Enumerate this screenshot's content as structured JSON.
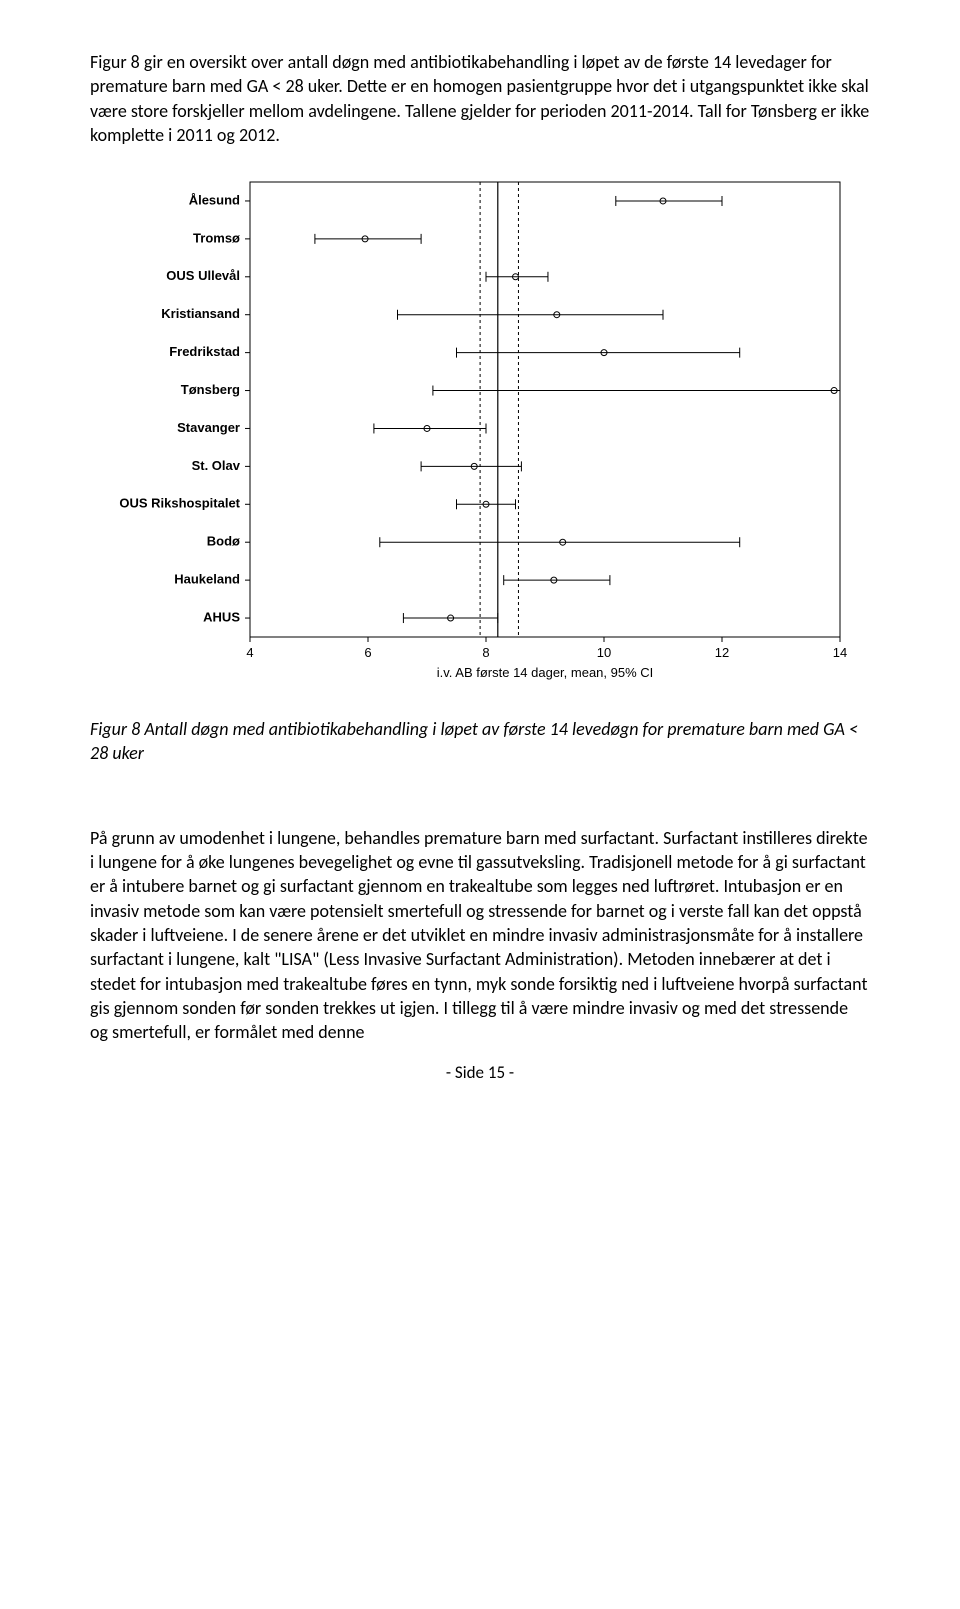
{
  "intro_para": "Figur 8 gir en oversikt over antall døgn med antibiotikabehandling i løpet av de første 14 levedager for premature barn med GA < 28 uker. Dette er en homogen pasientgruppe hvor det i utgangspunktet ikke skal være store forskjeller mellom avdelingene. Tallene gjelder for perioden 2011-2014. Tall for Tønsberg er ikke komplette i 2011 og 2012.",
  "caption": "Figur 8 Antall døgn med antibiotikabehandling i løpet av første 14 levedøgn for premature barn med GA < 28 uker",
  "body_para": "På grunn av umodenhet i lungene, behandles premature barn med surfactant. Surfactant instilleres direkte i lungene for å øke lungenes bevegelighet og evne til gassutveksling. Tradisjonell metode for å gi surfactant er å intubere barnet og gi surfactant gjennom en trakealtube som legges ned luftrøret. Intubasjon er en invasiv metode som kan være potensielt smertefull og stressende for barnet og i verste fall kan det oppstå skader i luftveiene. I de senere årene er det utviklet en mindre invasiv administrasjonsmåte for å installere surfactant i lungene, kalt \"LISA\" (Less Invasive Surfactant Administration). Metoden innebærer at det i stedet for intubasjon med trakealtube føres en tynn, myk sonde forsiktig ned i luftveiene hvorpå surfactant gis gjennom sonden før sonden trekkes ut igjen. I tillegg til å være mindre invasiv og med det stressende og smertefull, er formålet med denne",
  "footer": "- Side 15 -",
  "chart": {
    "type": "forest",
    "x_axis_title": "i.v. AB første 14 dager, mean, 95% CI",
    "xlim": [
      4,
      14
    ],
    "xticks": [
      4,
      6,
      8,
      10,
      12,
      14
    ],
    "ref_solid": 8.2,
    "ref_dashed": [
      7.9,
      8.55
    ],
    "marker_radius": 3,
    "cap_half": 5,
    "background": "#ffffff",
    "stroke": "#000000",
    "rows": [
      {
        "label": "Ålesund",
        "lo": 10.2,
        "mean": 11.0,
        "hi": 12.0
      },
      {
        "label": "Tromsø",
        "lo": 5.1,
        "mean": 5.95,
        "hi": 6.9
      },
      {
        "label": "OUS Ullevål",
        "lo": 8.0,
        "mean": 8.5,
        "hi": 9.05
      },
      {
        "label": "Kristiansand",
        "lo": 6.5,
        "mean": 9.2,
        "hi": 11.0
      },
      {
        "label": "Fredrikstad",
        "lo": 7.5,
        "mean": 10.0,
        "hi": 12.3
      },
      {
        "label": "Tønsberg",
        "lo": 7.1,
        "mean": 13.9,
        "hi": 14.0
      },
      {
        "label": "Stavanger",
        "lo": 6.1,
        "mean": 7.0,
        "hi": 8.0
      },
      {
        "label": "St. Olav",
        "lo": 6.9,
        "mean": 7.8,
        "hi": 8.6
      },
      {
        "label": "OUS Rikshospitalet",
        "lo": 7.5,
        "mean": 8.0,
        "hi": 8.5
      },
      {
        "label": "Bodø",
        "lo": 6.2,
        "mean": 9.3,
        "hi": 12.3
      },
      {
        "label": "Haukeland",
        "lo": 8.3,
        "mean": 9.15,
        "hi": 10.1
      },
      {
        "label": "AHUS",
        "lo": 6.6,
        "mean": 7.4,
        "hi": 8.2
      }
    ]
  }
}
